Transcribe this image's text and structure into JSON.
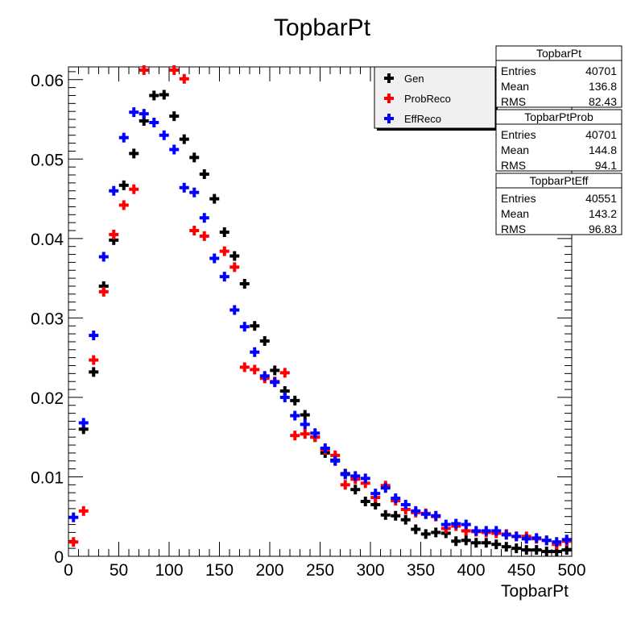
{
  "chart_data": {
    "type": "scatter",
    "title": "TopbarPt",
    "xlabel": "TopbarPt",
    "ylabel": "",
    "xlim": [
      0,
      500
    ],
    "ylim": [
      0,
      0.0616
    ],
    "x_ticks": [
      "0",
      "50",
      "100",
      "150",
      "200",
      "250",
      "300",
      "350",
      "400",
      "450",
      "500"
    ],
    "y_ticks": [
      "0",
      "0.01",
      "0.02",
      "0.03",
      "0.04",
      "0.05",
      "0.06"
    ],
    "grid": false,
    "legend_position": "top-right",
    "x": [
      5,
      15,
      25,
      35,
      45,
      55,
      65,
      75,
      85,
      95,
      105,
      115,
      125,
      135,
      145,
      155,
      165,
      175,
      185,
      195,
      205,
      215,
      225,
      235,
      245,
      255,
      265,
      275,
      285,
      295,
      305,
      315,
      325,
      335,
      345,
      355,
      365,
      375,
      385,
      395,
      405,
      415,
      425,
      435,
      445,
      455,
      465,
      475,
      485,
      495
    ],
    "series": [
      {
        "name": "Gen",
        "color": "#000000",
        "values": [
          0.0,
          0.016,
          0.0232,
          0.034,
          0.0398,
          0.0467,
          0.0507,
          0.0548,
          0.058,
          0.0581,
          0.0554,
          0.0525,
          0.0502,
          0.0481,
          0.045,
          0.0408,
          0.0378,
          0.0343,
          0.029,
          0.0271,
          0.0234,
          0.0208,
          0.0196,
          0.0178,
          0.015,
          0.013,
          0.0121,
          0.0104,
          0.0084,
          0.0069,
          0.0065,
          0.0052,
          0.0051,
          0.0046,
          0.0034,
          0.0028,
          0.003,
          0.0029,
          0.0019,
          0.002,
          0.0017,
          0.0017,
          0.0015,
          0.0012,
          0.001,
          0.0008,
          0.0008,
          0.0006,
          0.0006,
          0.0008
        ]
      },
      {
        "name": "ProbReco",
        "color": "#ff0000",
        "values": [
          0.0018,
          0.0057,
          0.0247,
          0.0333,
          0.0405,
          0.0442,
          0.0462,
          0.0612,
          0.0,
          0.0,
          0.0612,
          0.0601,
          0.041,
          0.0403,
          0.0,
          0.0384,
          0.0364,
          0.0238,
          0.0235,
          0.0224,
          0.022,
          0.0231,
          0.0152,
          0.0154,
          0.015,
          0.0134,
          0.0127,
          0.009,
          0.0097,
          0.0092,
          0.0074,
          0.0089,
          0.007,
          0.0059,
          0.0055,
          0.0054,
          0.005,
          0.0035,
          0.0038,
          0.0032,
          0.0031,
          0.003,
          0.0029,
          0.0028,
          0.0025,
          0.0025,
          0.0022,
          0.002,
          0.0015,
          0.0019
        ]
      },
      {
        "name": "EffReco",
        "color": "#0000ff",
        "values": [
          0.0049,
          0.0168,
          0.0278,
          0.0377,
          0.046,
          0.0527,
          0.0559,
          0.0557,
          0.0546,
          0.053,
          0.0512,
          0.0464,
          0.0458,
          0.0426,
          0.0375,
          0.0352,
          0.031,
          0.0289,
          0.0257,
          0.0227,
          0.0219,
          0.02,
          0.0177,
          0.0166,
          0.0155,
          0.0136,
          0.012,
          0.0103,
          0.0101,
          0.0098,
          0.0079,
          0.0086,
          0.0073,
          0.0065,
          0.0057,
          0.0053,
          0.0051,
          0.004,
          0.0041,
          0.004,
          0.0032,
          0.0032,
          0.0032,
          0.0027,
          0.0025,
          0.0022,
          0.0023,
          0.002,
          0.0018,
          0.0021
        ]
      }
    ],
    "legend": [
      "Gen",
      "ProbReco",
      "EffReco"
    ],
    "stats_boxes": [
      {
        "title": "TopbarPt",
        "rows": [
          [
            "Entries",
            "40701"
          ],
          [
            "Mean",
            "136.8"
          ],
          [
            "RMS",
            "82.43"
          ]
        ]
      },
      {
        "title": "TopbarPtProb",
        "rows": [
          [
            "Entries",
            "40701"
          ],
          [
            "Mean",
            "144.8"
          ],
          [
            "RMS",
            "94.1"
          ]
        ]
      },
      {
        "title": "TopbarPtEff",
        "rows": [
          [
            "Entries",
            "40551"
          ],
          [
            "Mean",
            "143.2"
          ],
          [
            "RMS",
            "96.83"
          ]
        ]
      }
    ]
  }
}
